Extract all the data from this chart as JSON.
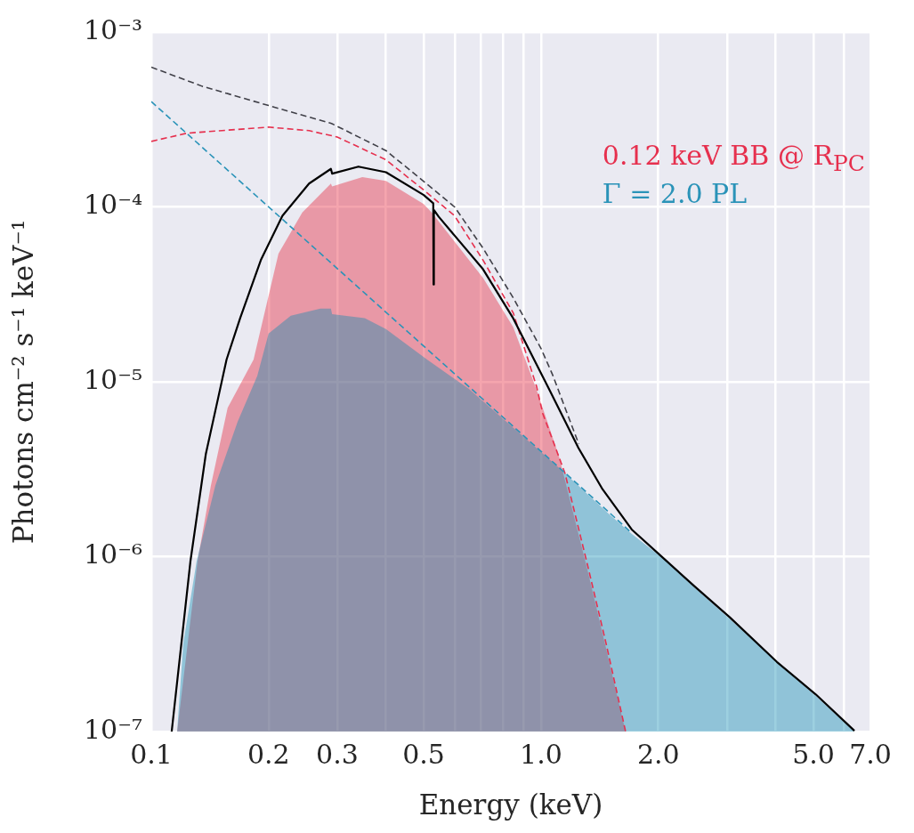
{
  "chart_data": {
    "type": "line",
    "xlabel": "Energy (keV)",
    "ylabel": "Photons cm⁻² s⁻¹ keV⁻¹",
    "log": "xy",
    "grid": true,
    "legend": "top right",
    "marker": "none",
    "xlim": [
      0.1,
      7.0
    ],
    "xticks": [
      0.1,
      0.2,
      0.3,
      {
        "value": 0.4,
        "label": null
      },
      0.5,
      {
        "value": 0.6,
        "label": null
      },
      {
        "value": 0.7,
        "label": null
      },
      {
        "value": 0.8,
        "label": null
      },
      {
        "value": 0.9,
        "label": null
      },
      {
        "value": 1.0,
        "label": "1.0"
      },
      {
        "value": 2.0,
        "label": "2.0"
      },
      {
        "value": 3.0,
        "label": null
      },
      {
        "value": 4.0,
        "label": null
      },
      {
        "value": 5.0,
        "label": "5.0"
      },
      {
        "value": 6.0,
        "label": null
      },
      {
        "value": 7.0,
        "label": "7.0"
      }
    ],
    "ylim": [
      1e-07,
      0.001
    ],
    "yticks": [
      {
        "value": 1e-07,
        "label": "10⁻⁷"
      },
      {
        "value": 1e-06,
        "label": "10⁻⁶"
      },
      {
        "value": 1e-05,
        "label": "10⁻⁵"
      },
      {
        "value": 0.0001,
        "label": "10⁻⁴"
      },
      {
        "value": 0.001,
        "label": "10⁻³"
      }
    ],
    "series": [
      {
        "type": "area",
        "color": "#e51d34",
        "x": [
          0.1165,
          0.1314,
          0.1422,
          0.157,
          0.183,
          0.212,
          0.244,
          0.289,
          0.291,
          0.348,
          0.4,
          0.5,
          0.524,
          0.71,
          0.849,
          0.974,
          1.11,
          1.314,
          1.468,
          1.648
        ],
        "values": [
          1e-07,
          9.4e-07,
          2.55e-06,
          7.1e-06,
          1.34e-05,
          5.4e-05,
          9.3e-05,
          0.000136,
          0.000131,
          0.000148,
          0.000141,
          0.000104,
          9.3e-05,
          3.93e-05,
          2.05e-05,
          9e-06,
          3.8e-06,
          8.5e-07,
          3e-07,
          1e-07
        ]
      },
      {
        "type": "area",
        "color": "#0b89b2",
        "x": [
          0.1165,
          0.1208,
          0.1307,
          0.146,
          0.1665,
          0.187,
          0.2,
          0.228,
          0.2716,
          0.289,
          0.291,
          0.353,
          0.4,
          0.51,
          0.653,
          1.129,
          1.5,
          1.71,
          2.03,
          2.47,
          3.05,
          4.03,
          5.07,
          6.37
        ],
        "values": [
          1e-07,
          3.2e-07,
          9.4e-07,
          2.55e-06,
          5.9e-06,
          1.08e-05,
          1.89e-05,
          2.39e-05,
          2.62e-05,
          2.62e-05,
          2.44e-05,
          2.31e-05,
          2e-05,
          1.34e-05,
          9.1e-06,
          3.13e-06,
          1.74e-06,
          1.35e-06,
          1e-06,
          6.7e-07,
          4.4e-07,
          2.5e-07,
          1.6e-07,
          1e-07
        ]
      },
      {
        "type": "line",
        "name": "0.12 keV BB @ R$_{PC}$",
        "color": "#e6304e",
        "line_style": "dashed",
        "x": [
          0.1,
          0.1234,
          0.2,
          0.254,
          0.3,
          0.4,
          0.5,
          0.6,
          0.71,
          0.849,
          0.974,
          1.01,
          1.152,
          1.314,
          1.468,
          1.648
        ],
        "values": [
          0.000237,
          0.000264,
          0.000286,
          0.000273,
          0.000251,
          0.000186,
          0.000125,
          8.9e-05,
          4.96e-05,
          2.47e-05,
          9.4e-06,
          6.6e-06,
          3e-06,
          9.1e-07,
          3.2e-07,
          1e-07
        ]
      },
      {
        "type": "line",
        "name": "Γ = 2.0 PL",
        "color": "#2a93b8",
        "line_style": "dashed",
        "x": [
          0.1,
          0.2,
          0.5,
          1.0,
          1.5,
          1.7
        ],
        "values": [
          0.0004,
          0.0001,
          1.6e-05,
          4e-06,
          1.78e-06,
          1.38e-06
        ]
      },
      {
        "type": "line",
        "color": "#404048",
        "line_style": "dashed",
        "x": [
          0.1,
          0.135,
          0.2,
          0.29,
          0.4,
          0.5,
          0.6,
          0.71,
          0.85,
          1.0,
          1.07,
          1.25
        ],
        "values": [
          0.00063,
          0.00049,
          0.00038,
          0.0003,
          0.00021,
          0.00014,
          0.0001,
          5.8e-05,
          3e-05,
          1.55e-05,
          1.1e-05,
          4.4e-06
        ]
      },
      {
        "type": "line",
        "color": "#000000",
        "line_style": "solid",
        "x": [
          0.1128,
          0.126,
          0.138,
          0.149,
          0.156,
          0.169,
          0.191,
          0.217,
          0.254,
          0.289,
          0.291,
          0.34,
          0.4,
          0.5,
          0.529,
          0.53,
          0.531,
          0.546,
          0.71,
          0.849,
          1.048,
          1.247,
          1.438,
          1.709,
          2.03,
          2.47,
          3.05,
          4.03,
          5.07,
          6.37
        ],
        "values": [
          1e-07,
          9.4e-07,
          3.86e-06,
          8.4e-06,
          1.34e-05,
          2.31e-05,
          4.96e-05,
          8.9e-05,
          0.000136,
          0.000165,
          0.000155,
          0.00017,
          0.000158,
          0.000117,
          0.000105,
          3.6e-05,
          9.6e-05,
          8.8e-05,
          4.4e-05,
          2.3e-05,
          9.1e-06,
          4.19e-06,
          2.43e-06,
          1.43e-06,
          1.01e-06,
          6.8e-07,
          4.5e-07,
          2.5e-07,
          1.63e-07,
          1.01e-07
        ]
      }
    ]
  }
}
